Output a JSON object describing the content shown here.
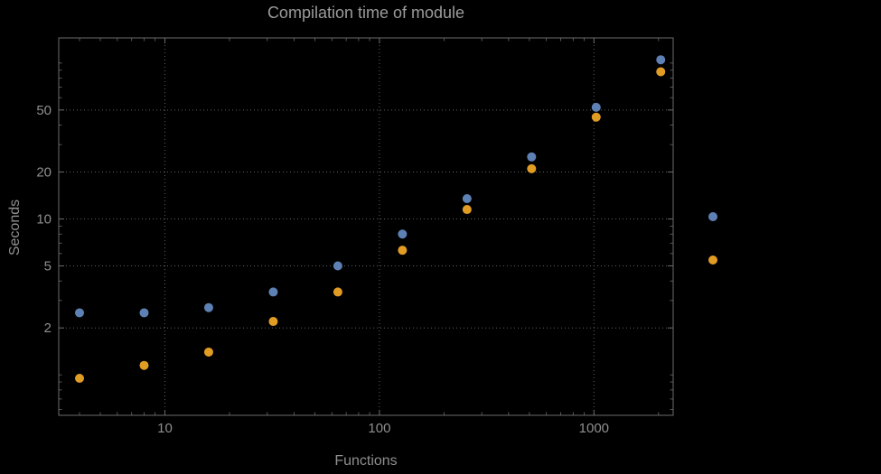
{
  "title": "Compilation time of module",
  "colors": {
    "background": "#000000",
    "frame": "#6b6b6b",
    "grid": "#5f5f5f",
    "tick": "#6b6b6b",
    "label": "#8f8f8f",
    "title": "#9b9b9b",
    "series_blue": "#5e81b5",
    "series_orange": "#e19c24"
  },
  "chart_data": {
    "type": "scatter",
    "title": "Compilation time of module",
    "xlabel": "Functions",
    "ylabel": "Seconds",
    "x_scale": "log",
    "y_scale": "log",
    "xlim": [
      3.2,
      2340
    ],
    "ylim": [
      0.55,
      145
    ],
    "x_ticks": [
      10,
      100,
      1000
    ],
    "x_tick_labels": [
      "10",
      "100",
      "1000"
    ],
    "y_ticks": [
      2,
      5,
      10,
      20,
      50
    ],
    "y_tick_labels": [
      "2",
      "5",
      "10",
      "20",
      "50"
    ],
    "grid": true,
    "grid_style": "dotted",
    "x": [
      4,
      8,
      16,
      32,
      64,
      128,
      256,
      512,
      1024,
      2048
    ],
    "series": [
      {
        "name": "series-blue",
        "color": "#5e81b5",
        "values": [
          2.5,
          2.5,
          2.7,
          3.4,
          5.0,
          8.0,
          13.5,
          25,
          52,
          105
        ]
      },
      {
        "name": "series-orange",
        "color": "#e19c24",
        "values": [
          0.95,
          1.15,
          1.4,
          2.2,
          3.4,
          6.3,
          11.5,
          21,
          45,
          88
        ]
      }
    ],
    "legend": {
      "position": "right",
      "entries": [
        {
          "name": "legend-marker-blue",
          "marker_color": "#5e81b5"
        },
        {
          "name": "legend-marker-orange",
          "marker_color": "#e19c24"
        }
      ]
    }
  }
}
